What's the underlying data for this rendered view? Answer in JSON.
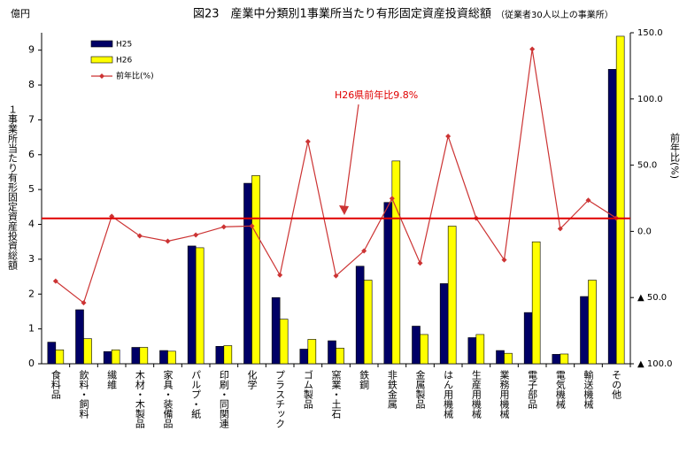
{
  "chart_data": {
    "type": "bar",
    "title": "図23　産業中分類別1事業所当たり有形固定資産投資総額",
    "subtitle": "（従業者30人以上の事業所）",
    "y_unit": "億円",
    "ylabel": "１事業所当たり有形固定資産投資総額",
    "y2label": "前年比(%)",
    "categories": [
      "食料品",
      "飲料・飼料",
      "繊維",
      "木材・木製品",
      "家具・装備品",
      "パルプ・紙",
      "印刷・同関連",
      "化学",
      "プラスチック",
      "ゴム製品",
      "窯業・土石",
      "鉄鋼",
      "非鉄金属",
      "金属製品",
      "はん用機械",
      "生産用機械",
      "業務用機械",
      "電子部品",
      "電気機械",
      "輸送機械",
      "その他"
    ],
    "series": [
      {
        "name": "H25",
        "color": "#000066",
        "values": [
          0.62,
          1.55,
          0.35,
          0.47,
          0.38,
          3.38,
          0.5,
          5.18,
          1.9,
          0.42,
          0.66,
          2.8,
          4.63,
          1.08,
          2.3,
          0.75,
          0.38,
          1.47,
          0.27,
          1.93,
          8.45
        ]
      },
      {
        "name": "H26",
        "color": "#ffff00",
        "values": [
          0.4,
          0.72,
          0.4,
          0.47,
          0.36,
          3.33,
          0.52,
          5.4,
          1.28,
          0.7,
          0.45,
          2.4,
          5.82,
          0.84,
          3.95,
          0.84,
          0.3,
          3.5,
          0.28,
          2.4,
          9.4
        ]
      },
      {
        "name": "前年比(%)",
        "color": "#cc3333",
        "type": "line",
        "axis": "y2",
        "values": [
          -37.6,
          -54,
          11.4,
          -3.4,
          -7.4,
          -2.7,
          3.4,
          4,
          -33,
          67.8,
          -33.6,
          -14.8,
          24.8,
          -24,
          71.8,
          10,
          -21.5,
          137.6,
          2,
          23.5,
          10
        ]
      }
    ],
    "ylim": [
      0,
      9.5
    ],
    "yticks": [
      0,
      1,
      2,
      3,
      4,
      5,
      6,
      7,
      8,
      9
    ],
    "y2lim": [
      -100,
      150
    ],
    "y2ticks": [
      {
        "value": -100,
        "label": "▲ 100.0"
      },
      {
        "value": -50,
        "label": "▲ 50.0"
      },
      {
        "value": 0,
        "label": "0.0"
      },
      {
        "value": 50,
        "label": "50.0"
      },
      {
        "value": 100,
        "label": "100.0"
      },
      {
        "value": 150,
        "label": "150.0"
      }
    ],
    "reference_line": {
      "value": 9.8,
      "axis": "y2",
      "color": "#e00000",
      "label": "H26県前年比9.8%"
    },
    "legend": "upper left"
  }
}
